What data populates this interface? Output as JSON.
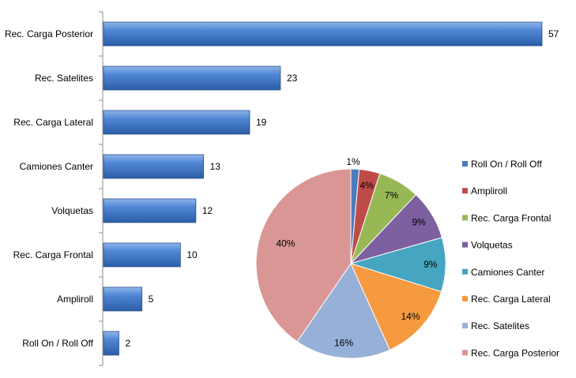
{
  "chart_data": [
    {
      "type": "bar",
      "orientation": "horizontal",
      "categories": [
        "Rec. Carga Posterior",
        "Rec. Satelites",
        "Rec. Carga Lateral",
        "Camiones Canter",
        "Volquetas",
        "Rec. Carga Frontal",
        "Ampliroll",
        "Roll On / Roll Off"
      ],
      "values": [
        57,
        23,
        19,
        13,
        12,
        10,
        5,
        2
      ],
      "value_labels": [
        "57",
        "23",
        "19",
        "13",
        "12",
        "10",
        "5",
        "2"
      ],
      "xlim": [
        0,
        60
      ],
      "bar_color": "#3f79c9",
      "title": "",
      "xlabel": "",
      "ylabel": "",
      "grid": false
    },
    {
      "type": "pie",
      "labels": [
        "Roll On / Roll Off",
        "Ampliroll",
        "Rec. Carga Frontal",
        "Volquetas",
        "Camiones Canter",
        "Rec. Carga Lateral",
        "Rec. Satelites",
        "Rec. Carga Posterior"
      ],
      "values": [
        2,
        5,
        10,
        12,
        13,
        19,
        23,
        57
      ],
      "percent_labels": [
        "1%",
        "4%",
        "7%",
        "9%",
        "9%",
        "14%",
        "16%",
        "40%"
      ],
      "colors": [
        "#4a7dbd",
        "#bf4b48",
        "#98b856",
        "#7d60a0",
        "#46a5c0",
        "#f59a3f",
        "#96b0d8",
        "#d99694"
      ],
      "legend_position": "right"
    }
  ]
}
